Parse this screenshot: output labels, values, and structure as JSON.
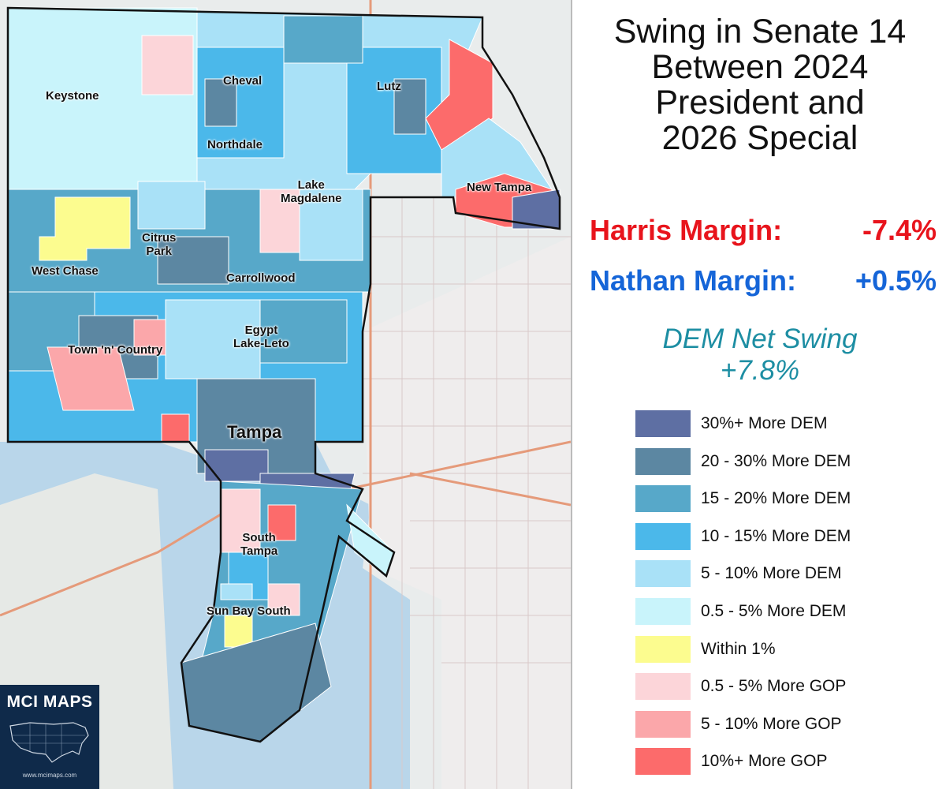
{
  "title_lines": [
    "Swing in Senate 14",
    "Between 2024",
    "President and",
    "2026 Special"
  ],
  "harris": {
    "label": "Harris Margin:",
    "value": "-7.4%"
  },
  "nathan": {
    "label": "Nathan Margin:",
    "value": "+0.5%"
  },
  "swing": {
    "label": "DEM Net Swing",
    "value": "+7.8%"
  },
  "legend": [
    {
      "label": "30%+ More DEM",
      "color": "#5e6fa3"
    },
    {
      "label": "20 - 30% More DEM",
      "color": "#5c87a2"
    },
    {
      "label": "15 - 20% More DEM",
      "color": "#57a8c9"
    },
    {
      "label": "10 - 15% More DEM",
      "color": "#4bb8ea"
    },
    {
      "label": "5 - 10% More DEM",
      "color": "#a9e1f7"
    },
    {
      "label": "0.5 - 5% More DEM",
      "color": "#c9f4fb"
    },
    {
      "label": "Within 1%",
      "color": "#fcfc8f"
    },
    {
      "label": "0.5 - 5% More GOP",
      "color": "#fcd5d9"
    },
    {
      "label": "5 - 10% More GOP",
      "color": "#fba7aa"
    },
    {
      "label": "10%+ More GOP",
      "color": "#fc6b6b"
    }
  ],
  "places": {
    "keystone": "Keystone",
    "cheval": "Cheval",
    "lutz": "Lutz",
    "northdale": "Northdale",
    "lake_magdalene_1": "Lake",
    "lake_magdalene_2": "Magdalene",
    "new_tampa": "New Tampa",
    "citrus_park_1": "Citrus",
    "citrus_park_2": "Park",
    "west_chase": "West Chase",
    "carrollwood": "Carrollwood",
    "egypt_lake_1": "Egypt",
    "egypt_lake_2": "Lake-Leto",
    "town_n_country": "Town 'n' Country",
    "tampa": "Tampa",
    "south_tampa_1": "South",
    "south_tampa_2": "Tampa",
    "sun_bay_south": "Sun Bay South"
  },
  "logo": {
    "text": "MCI MAPS",
    "url": "www.mcimaps.com"
  }
}
